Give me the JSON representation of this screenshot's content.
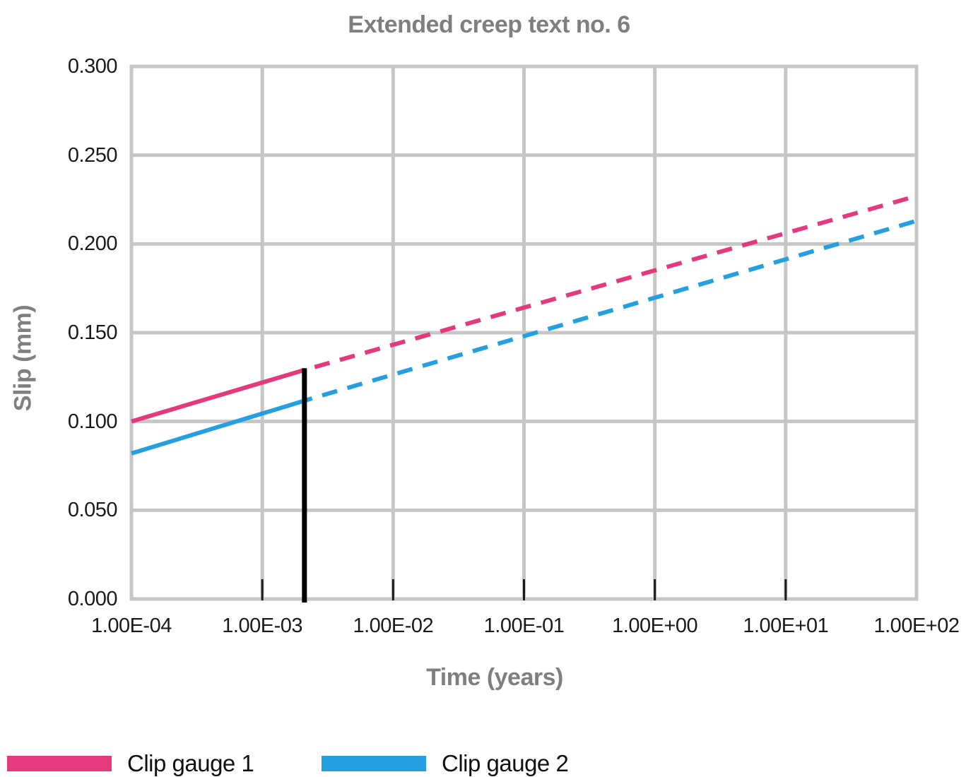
{
  "chart_data": {
    "type": "line",
    "title": "Extended creep text no. 6",
    "xlabel": "Time (years)",
    "ylabel": "Slip (mm)",
    "x_scale": "log",
    "xlim": [
      0.0001,
      100
    ],
    "ylim": [
      0.0,
      0.3
    ],
    "grid": true,
    "grid_color": "#c6c6c6",
    "axis_tick_color": "#1a1a1a",
    "x_ticks": [
      "1.00E-04",
      "1.00E-03",
      "1.00E-02",
      "1.00E-01",
      "1.00E+00",
      "1.00E+01",
      "1.00E+02"
    ],
    "x_tick_values": [
      0.0001,
      0.001,
      0.01,
      0.1,
      1,
      10,
      100
    ],
    "y_ticks": [
      "0.300",
      "0.250",
      "0.200",
      "0.150",
      "0.100",
      "0.050",
      "0.000"
    ],
    "y_tick_values": [
      0.3,
      0.25,
      0.2,
      0.15,
      0.1,
      0.05,
      0.0
    ],
    "legend_position": "bottom-left",
    "series": [
      {
        "name": "Clip gauge 1",
        "color": "#e4397c",
        "solid": {
          "x": [
            0.0001,
            0.0021
          ],
          "y": [
            0.1,
            0.129
          ]
        },
        "dashed": {
          "x": [
            0.0021,
            100
          ],
          "y": [
            0.129,
            0.227
          ]
        }
      },
      {
        "name": "Clip gauge 2",
        "color": "#249fdf",
        "solid": {
          "x": [
            0.0001,
            0.0024
          ],
          "y": [
            0.082,
            0.113
          ]
        },
        "dashed": {
          "x": [
            0.0024,
            100
          ],
          "y": [
            0.113,
            0.213
          ]
        }
      }
    ],
    "marker_line": {
      "x": 0.0021,
      "y_from": 0.0,
      "y_to": 0.13,
      "color": "#000000"
    }
  }
}
